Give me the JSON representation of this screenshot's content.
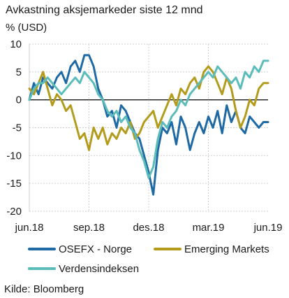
{
  "chart_data": {
    "type": "line",
    "title": "Avkastning aksjemarkeder siste 12 mnd",
    "subtitle": "% (USD)",
    "source": "Kilde: Bloomberg",
    "ylim": [
      -20,
      10
    ],
    "yticks": [
      10,
      5,
      0,
      -5,
      -10,
      -15,
      -20
    ],
    "xlim": [
      0,
      52
    ],
    "xticks": [
      {
        "x": 0,
        "label": "jun.18"
      },
      {
        "x": 13,
        "label": "sep.18"
      },
      {
        "x": 26,
        "label": "des.18"
      },
      {
        "x": 39,
        "label": "mar.19"
      },
      {
        "x": 52,
        "label": "jun.19"
      }
    ],
    "grid": true,
    "legend": "bottom",
    "series": [
      {
        "name": "OSEFX - Norge",
        "color": "#1f6aa5",
        "x": [
          0,
          1,
          2,
          3,
          4,
          5,
          6,
          7,
          8,
          9,
          10,
          11,
          12,
          13,
          14,
          15,
          16,
          17,
          18,
          19,
          20,
          21,
          22,
          23,
          24,
          25,
          26,
          27,
          28,
          29,
          30,
          31,
          32,
          33,
          34,
          35,
          36,
          37,
          38,
          39,
          40,
          41,
          42,
          43,
          44,
          45,
          46,
          47,
          48,
          49,
          50,
          51,
          52
        ],
        "values": [
          0,
          3,
          1,
          4,
          3,
          2,
          4,
          5,
          3,
          6,
          7,
          5,
          8,
          8,
          6,
          2,
          0,
          -3,
          -2,
          -5,
          -1,
          -2,
          -4,
          -6,
          -7,
          -10,
          -13,
          -17,
          -9,
          -5,
          -6,
          -4,
          -8,
          -3,
          -5,
          -9,
          -6,
          -4,
          -6,
          -3,
          -5,
          -2,
          -6,
          -1,
          -4,
          -2,
          -5,
          -6,
          -3,
          -4,
          -5,
          -4,
          -4
        ]
      },
      {
        "name": "Emerging Markets",
        "color": "#b39b1c",
        "x": [
          0,
          1,
          2,
          3,
          4,
          5,
          6,
          7,
          8,
          9,
          10,
          11,
          12,
          13,
          14,
          15,
          16,
          17,
          18,
          19,
          20,
          21,
          22,
          23,
          24,
          25,
          26,
          27,
          28,
          29,
          30,
          31,
          32,
          33,
          34,
          35,
          36,
          37,
          38,
          39,
          40,
          41,
          42,
          43,
          44,
          45,
          46,
          47,
          48,
          49,
          50,
          51,
          52
        ],
        "values": [
          2,
          1,
          3,
          5,
          2,
          -1,
          1,
          0,
          -2,
          -1,
          -4,
          -7,
          -6,
          -9,
          -5,
          -7,
          -5,
          -8,
          -6,
          -7,
          -5,
          -6,
          -4,
          -7,
          -6,
          -4,
          -3,
          -2,
          -5,
          -3,
          -1,
          1,
          -1,
          2,
          1,
          3,
          4,
          2,
          5,
          6,
          5,
          3,
          1,
          4,
          2,
          -2,
          -5,
          -3,
          0,
          -1,
          2,
          3,
          3
        ]
      },
      {
        "name": "Verdensindeksen",
        "color": "#5bbcba",
        "x": [
          0,
          1,
          2,
          3,
          4,
          5,
          6,
          7,
          8,
          9,
          10,
          11,
          12,
          13,
          14,
          15,
          16,
          17,
          18,
          19,
          20,
          21,
          22,
          23,
          24,
          25,
          26,
          27,
          28,
          29,
          30,
          31,
          32,
          33,
          34,
          35,
          36,
          37,
          38,
          39,
          40,
          41,
          42,
          43,
          44,
          45,
          46,
          47,
          48,
          49,
          50,
          51,
          52
        ],
        "values": [
          0,
          2,
          3,
          3,
          4,
          3,
          2,
          1,
          2,
          3,
          4,
          3,
          5,
          4,
          3,
          1,
          0,
          -2,
          -3,
          -2,
          -4,
          -3,
          -5,
          -6,
          -9,
          -11,
          -14,
          -12,
          -7,
          -4,
          -5,
          -3,
          -2,
          0,
          -1,
          1,
          2,
          3,
          4,
          5,
          4,
          6,
          5,
          4,
          3,
          4,
          2,
          5,
          4,
          6,
          5,
          7,
          7
        ]
      }
    ]
  }
}
